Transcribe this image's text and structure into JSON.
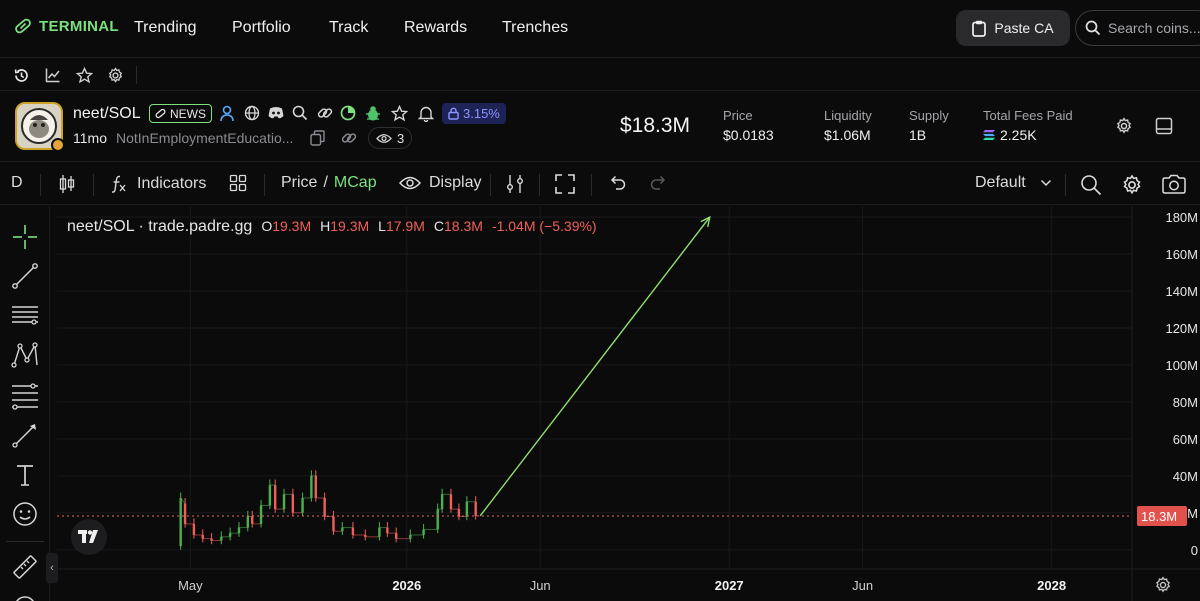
{
  "nav": {
    "brand": "TERMINAL",
    "links": [
      "Trending",
      "Portfolio",
      "Track",
      "Rewards",
      "Trenches"
    ],
    "paste_ca": "Paste CA",
    "search_placeholder": "Search coins..."
  },
  "token": {
    "pair": "neet/SOL",
    "news_badge": "NEWS",
    "percent_badge": "3.15%",
    "age": "11mo",
    "full_name": "NotInEmploymentEducatio...",
    "watchers": "3",
    "market_cap": "$18.3M",
    "stats": [
      {
        "label": "Price",
        "value": "$0.0183"
      },
      {
        "label": "Liquidity",
        "value": "$1.06M"
      },
      {
        "label": "Supply",
        "value": "1B"
      },
      {
        "label": "Total Fees Paid",
        "value": "2.25K"
      }
    ]
  },
  "chart_toolbar": {
    "interval": "D",
    "indicators": "Indicators",
    "price_label": "Price",
    "separator": "/",
    "mcap_label": "MCap",
    "display": "Display",
    "layout": "Default"
  },
  "legend": {
    "title": "neet/SOL · trade.padre.gg",
    "o_key": "O",
    "o_val": "19.3M",
    "h_key": "H",
    "h_val": "19.3M",
    "l_key": "L",
    "l_val": "17.9M",
    "c_key": "C",
    "c_val": "18.3M",
    "change": "-1.04M (−5.39%)"
  },
  "colors": {
    "accent_green": "#7ee07e",
    "down_red": "#f0605a",
    "up_green": "#4caf50",
    "badge_blue": "#8c95ff"
  },
  "chart_data": {
    "type": "candlestick",
    "y_unit": "market cap (USD)",
    "y_ticks": [
      "0",
      "20M",
      "40M",
      "60M",
      "80M",
      "100M",
      "120M",
      "140M",
      "160M",
      "180M"
    ],
    "y_tick_values": [
      0,
      20,
      40,
      60,
      80,
      100,
      120,
      140,
      160,
      180
    ],
    "ylim": [
      -5,
      186
    ],
    "x_ticks": [
      "May",
      "2026",
      "Jun",
      "2027",
      "Jun",
      "2028"
    ],
    "x_tick_values": [
      "2025-05",
      "2026-01",
      "2026-06",
      "2027-01",
      "2027-06",
      "2028-01"
    ],
    "xlim": [
      "2024-12",
      "2028-04"
    ],
    "last_price_label": "18.3M",
    "last_price": 18.3,
    "grid": true,
    "series": [
      {
        "points": [
          [
            "2025-04-20",
            2,
            28
          ],
          [
            "2025-04-25",
            25,
            14
          ],
          [
            "2025-05-05",
            14,
            8
          ],
          [
            "2025-05-15",
            8,
            6
          ],
          [
            "2025-05-25",
            6,
            5
          ],
          [
            "2025-06-05",
            5,
            7
          ],
          [
            "2025-06-15",
            7,
            9
          ],
          [
            "2025-06-25",
            9,
            12
          ],
          [
            "2025-07-05",
            12,
            18
          ],
          [
            "2025-07-10",
            18,
            14
          ],
          [
            "2025-07-20",
            14,
            24
          ],
          [
            "2025-07-30",
            24,
            35
          ],
          [
            "2025-08-05",
            35,
            22
          ],
          [
            "2025-08-15",
            22,
            30
          ],
          [
            "2025-08-25",
            30,
            20
          ],
          [
            "2025-09-05",
            20,
            28
          ],
          [
            "2025-09-15",
            28,
            40
          ],
          [
            "2025-09-20",
            40,
            28
          ],
          [
            "2025-09-30",
            28,
            18
          ],
          [
            "2025-10-10",
            18,
            10
          ],
          [
            "2025-10-20",
            10,
            12
          ],
          [
            "2025-11-01",
            12,
            8
          ],
          [
            "2025-11-15",
            8,
            7
          ],
          [
            "2025-12-01",
            7,
            12
          ],
          [
            "2025-12-10",
            12,
            9
          ],
          [
            "2025-12-20",
            9,
            6
          ],
          [
            "2026-01-05",
            6,
            8
          ],
          [
            "2026-01-20",
            8,
            11
          ],
          [
            "2026-02-05",
            11,
            22
          ],
          [
            "2026-02-10",
            22,
            30
          ],
          [
            "2026-02-20",
            30,
            22
          ],
          [
            "2026-03-01",
            22,
            18
          ],
          [
            "2026-03-10",
            18,
            26
          ],
          [
            "2026-03-20",
            26,
            18.3
          ]
        ]
      }
    ],
    "annotation": {
      "type": "arrow",
      "from": [
        "2026-03-25",
        18.3
      ],
      "to": [
        "2026-12-10",
        180
      ]
    }
  }
}
